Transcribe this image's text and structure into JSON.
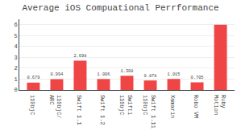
{
  "chart_data": {
    "type": "bar",
    "title": "Average iOS Compuational Perrformance",
    "categories": [
      "i10bjC",
      "i10bjC/\nARC",
      "Swift 1.1",
      "Swift 1.2",
      "Swifti\ni10bjC",
      "Swift 1.1i\ni10bjC",
      "Xamarin",
      "Robo VM",
      "Ruby\nMotion"
    ],
    "values": [
      0.679,
      0.994,
      2.698,
      1.006,
      1.308,
      0.878,
      1.015,
      0.705,
      6.0
    ],
    "value_labels": [
      "0.679",
      "0.994",
      "2.698",
      "1.006",
      "1.308",
      "0.878",
      "1.015",
      "0.705",
      null
    ],
    "data_labels": true,
    "color": "#f04545",
    "ylim": [
      0,
      6.5
    ],
    "yticks": [
      0,
      1,
      2,
      3,
      4,
      5,
      6
    ],
    "grid": true
  }
}
